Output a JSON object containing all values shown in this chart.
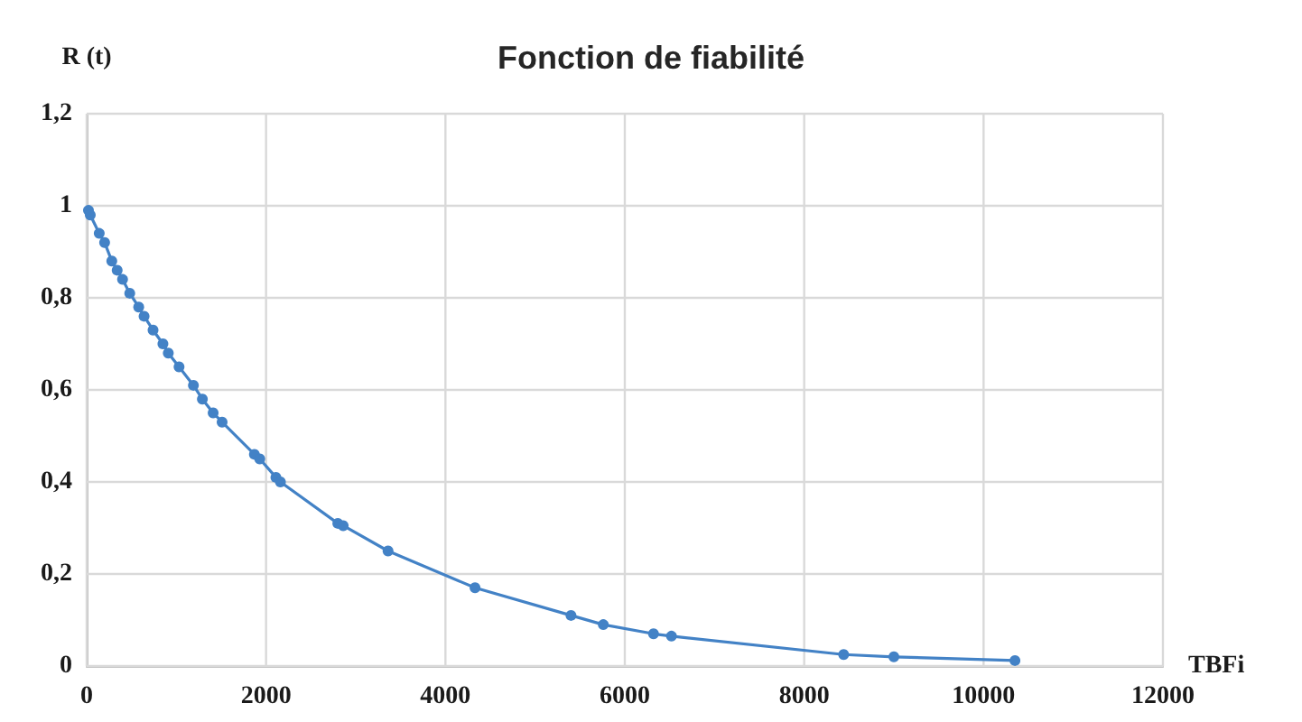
{
  "chart_data": {
    "type": "line",
    "title": "Fonction de fiabilité",
    "xlabel": "TBFi",
    "ylabel": "R (t)",
    "x": [
      20,
      40,
      140,
      200,
      280,
      340,
      400,
      480,
      580,
      640,
      740,
      850,
      910,
      1030,
      1190,
      1290,
      1410,
      1510,
      1870,
      1930,
      2110,
      2160,
      2800,
      2860,
      3360,
      4330,
      5400,
      5760,
      6320,
      6520,
      8440,
      9000,
      10350
    ],
    "series": [
      {
        "color": "#4382c6",
        "values": [
          0.99,
          0.98,
          0.94,
          0.92,
          0.88,
          0.86,
          0.84,
          0.81,
          0.78,
          0.76,
          0.73,
          0.7,
          0.68,
          0.65,
          0.61,
          0.58,
          0.55,
          0.53,
          0.46,
          0.45,
          0.41,
          0.4,
          0.31,
          0.305,
          0.25,
          0.17,
          0.11,
          0.09,
          0.07,
          0.065,
          0.025,
          0.02,
          0.012
        ]
      }
    ],
    "xlim": [
      0,
      12000
    ],
    "xticks": [
      0,
      2000,
      4000,
      6000,
      8000,
      10000,
      12000
    ],
    "ylim": [
      0,
      1.2
    ],
    "yticks": [
      0,
      {
        "value": 0.2,
        "label": "0,2"
      },
      {
        "value": 0.4,
        "label": "0,4"
      },
      {
        "value": 0.6,
        "label": "0,6"
      },
      {
        "value": 0.8,
        "label": "0,8"
      },
      1,
      {
        "value": 1.2,
        "label": "1,2"
      }
    ],
    "grid": true,
    "marker": "circle",
    "line_style": "solid"
  }
}
